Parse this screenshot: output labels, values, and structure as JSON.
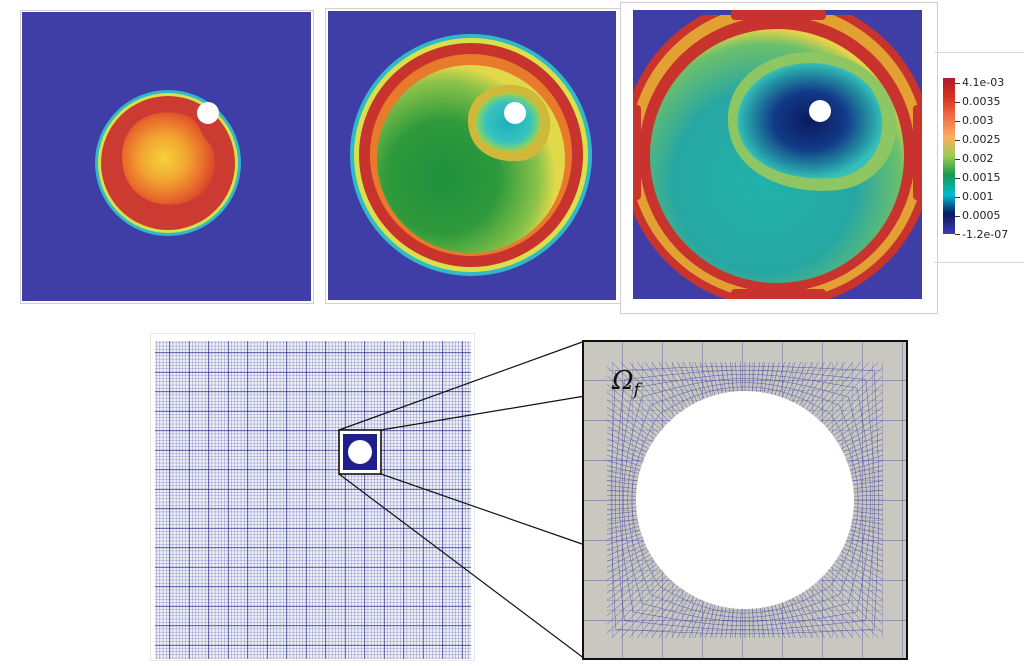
{
  "colorbar": {
    "labels": [
      "4.1e-03",
      "0.0035",
      "0.003",
      "0.0025",
      "0.002",
      "0.0015",
      "0.001",
      "0.0005",
      "-1.2e-07"
    ],
    "colors": [
      "#b2182b",
      "#d7301f",
      "#f46d43",
      "#fdae61",
      "#fee08b",
      "#a6d96a",
      "#1a9850",
      "#00bcd4",
      "#0b1a5c",
      "#3b3bb5"
    ]
  },
  "zoom_label": {
    "symbol": "Ω",
    "subscript": "f"
  },
  "colors": {
    "background_field": "#3e3ea6",
    "mesh_line": "#2d2d8f",
    "zoom_fill": "#c8c8c0",
    "hole": "#ffffff"
  }
}
